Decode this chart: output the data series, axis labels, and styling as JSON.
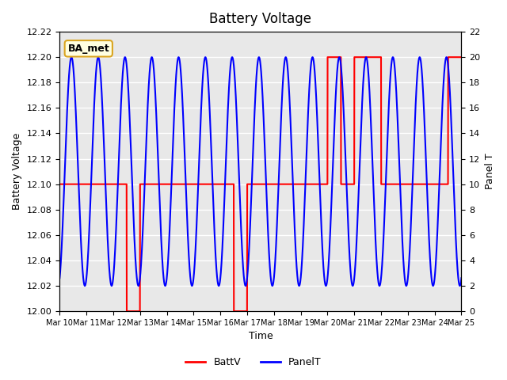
{
  "title": "Battery Voltage",
  "xlabel": "Time",
  "ylabel_left": "Battery Voltage",
  "ylabel_right": "Panel T",
  "legend_label_red": "BattV",
  "legend_label_blue": "PanelT",
  "annotation": "BA_met",
  "ylim_left": [
    12.0,
    12.22
  ],
  "ylim_right": [
    0,
    22
  ],
  "yticks_left": [
    12.0,
    12.02,
    12.04,
    12.06,
    12.08,
    12.1,
    12.12,
    12.14,
    12.16,
    12.18,
    12.2,
    12.22
  ],
  "yticks_right": [
    0,
    2,
    4,
    6,
    8,
    10,
    12,
    14,
    16,
    18,
    20,
    22
  ],
  "xtick_labels": [
    "Mar 10",
    "Mar 11",
    "Mar 12",
    "Mar 13",
    "Mar 14",
    "Mar 15",
    "Mar 16",
    "Mar 17",
    "Mar 18",
    "Mar 19",
    "Mar 20",
    "Mar 21",
    "Mar 22",
    "Mar 23",
    "Mar 24",
    "Mar 25"
  ],
  "background_color": "#e8e8e8",
  "plot_bg_color": "#e8e8e8",
  "red_color": "#ff0000",
  "blue_color": "#0000ff",
  "grid_color": "#ffffff",
  "title_color": "#000000"
}
